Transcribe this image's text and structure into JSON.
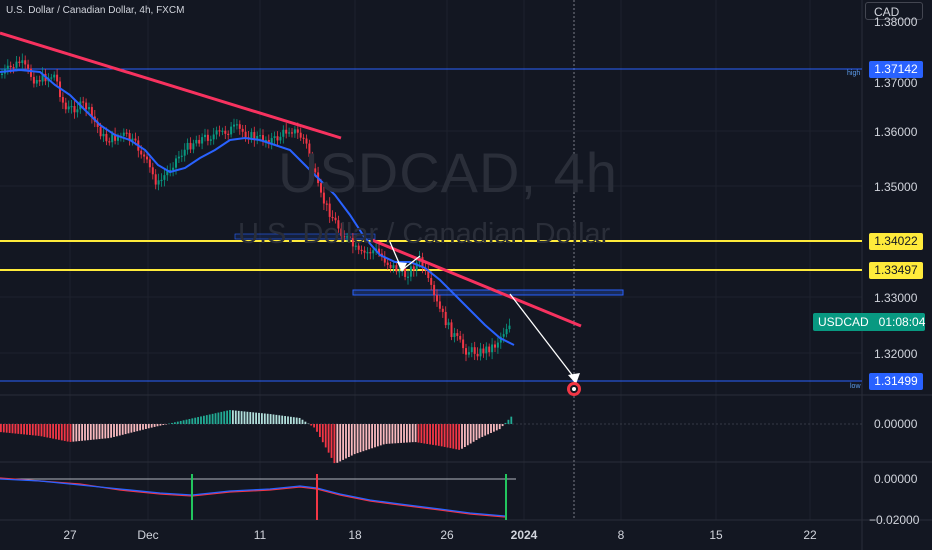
{
  "header": {
    "title": "U.S. Dollar / Canadian Dollar, 4h, FXCM",
    "currency": "CAD"
  },
  "watermark": {
    "symbol": "USDCAD, 4h",
    "description": "U.S. Dollar / Canadian Dollar"
  },
  "price_axis": {
    "labels": [
      "1.38000",
      "1.36000",
      "1.35000",
      "1.33000",
      "1.32000"
    ],
    "top_partial": "1.37000"
  },
  "price_tags": {
    "high": {
      "tag": "high",
      "value": "1.37142",
      "color": "#2962ff"
    },
    "level1": {
      "value": "1.34022",
      "color": "#ffeb3b"
    },
    "level2": {
      "value": "1.33497",
      "color": "#ffeb3b"
    },
    "low": {
      "tag": "low",
      "value": "1.31499",
      "color": "#2962ff"
    },
    "current": {
      "symbol": "USDCAD",
      "countdown": "01:08:04",
      "color": "#089981"
    }
  },
  "indicator1": {
    "zero_label": "0.00000"
  },
  "indicator2": {
    "zero_label": "0.00000",
    "bottom_label": "−0.02000"
  },
  "time_axis": {
    "labels": [
      {
        "text": "27",
        "bold": false
      },
      {
        "text": "Dec",
        "bold": false
      },
      {
        "text": "11",
        "bold": false
      },
      {
        "text": "18",
        "bold": false
      },
      {
        "text": "26",
        "bold": false
      },
      {
        "text": "2024",
        "bold": true
      },
      {
        "text": "8",
        "bold": false
      },
      {
        "text": "15",
        "bold": false
      },
      {
        "text": "22",
        "bold": false
      }
    ]
  },
  "colors": {
    "background": "#131722",
    "bull": "#089981",
    "bear": "#f23645",
    "trendline": "#f7325f",
    "ma": "#2962ff",
    "level": "#ffeb3b"
  },
  "icons": [
    "dividend-event-icon"
  ]
}
